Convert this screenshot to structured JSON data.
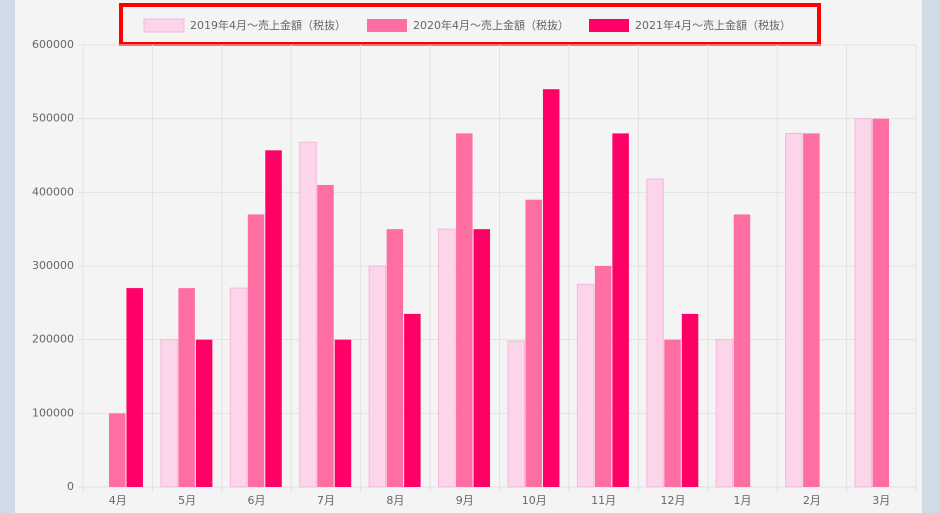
{
  "chart_data": {
    "type": "bar",
    "categories": [
      "4月",
      "5月",
      "6月",
      "7月",
      "8月",
      "9月",
      "10月",
      "11月",
      "12月",
      "1月",
      "2月",
      "3月"
    ],
    "series": [
      {
        "name": "2019年4月〜売上金額（税抜）",
        "color": "#fdd5ea",
        "values": [
          null,
          200000,
          270000,
          468000,
          300000,
          350000,
          198000,
          275000,
          418000,
          200000,
          480000,
          500000
        ]
      },
      {
        "name": "2020年4月〜売上金額（税抜）",
        "color": "#ff6ea3",
        "values": [
          100000,
          270000,
          370000,
          410000,
          350000,
          480000,
          390000,
          300000,
          200000,
          370000,
          480000,
          500000
        ]
      },
      {
        "name": "2021年4月〜売上金額（税抜）",
        "color": "#ff0066",
        "values": [
          270000,
          200000,
          457000,
          200000,
          235000,
          350000,
          540000,
          480000,
          235000,
          null,
          null,
          null
        ]
      }
    ],
    "ylim": [
      0,
      600000
    ],
    "yticks": [
      0,
      100000,
      200000,
      300000,
      400000,
      500000,
      600000
    ],
    "grid": true,
    "legend": "top"
  }
}
